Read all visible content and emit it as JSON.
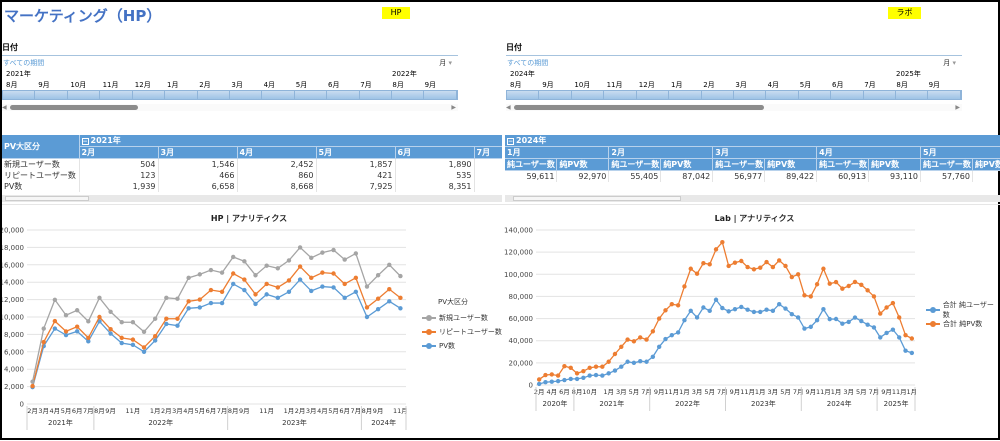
{
  "header": {
    "title": "マーケティング（HP）",
    "badge_hp": "HP",
    "badge_lab": "ラボ"
  },
  "colors": {
    "title": "#4472c4",
    "header_bg": "#5b9bd5",
    "badge": "#ffff00",
    "gray": "#a5a5a5",
    "orange": "#ed7d31",
    "blue": "#5b9bd5"
  },
  "left_slicer": {
    "heading": "日付",
    "all_periods": "すべての期間",
    "level": "月",
    "year_start": "2021年",
    "year_end": "2022年",
    "months": [
      "8月",
      "9月",
      "10月",
      "11月",
      "12月",
      "1月",
      "2月",
      "3月",
      "4月",
      "5月",
      "6月",
      "7月",
      "8月",
      "9月"
    ]
  },
  "right_slicer": {
    "heading": "日付",
    "all_periods": "すべての期間",
    "level": "月",
    "year_start": "2024年",
    "year_end": "2025年",
    "months": [
      "8月",
      "9月",
      "10月",
      "11月",
      "12月",
      "1月",
      "2月",
      "3月",
      "4月",
      "5月",
      "6月",
      "7月",
      "8月",
      "9月"
    ]
  },
  "left_table": {
    "row_header": "PV大区分",
    "year": "2021年",
    "months": [
      "2月",
      "3月",
      "4月",
      "5月",
      "6月",
      "7月"
    ],
    "rows": [
      {
        "label": "新規ユーザー数",
        "values": [
          "504",
          "1,546",
          "2,452",
          "1,857",
          "1,890",
          ""
        ]
      },
      {
        "label": "リピートユーザー数",
        "values": [
          "123",
          "466",
          "860",
          "421",
          "535",
          ""
        ]
      },
      {
        "label": "PV数",
        "values": [
          "1,939",
          "6,658",
          "8,668",
          "7,925",
          "8,351",
          ""
        ]
      }
    ]
  },
  "right_table": {
    "year": "2024年",
    "months": [
      "1月",
      "2月",
      "3月",
      "4月",
      "5月"
    ],
    "sub_headers": [
      "純ユーザー数",
      "純PV数"
    ],
    "values": [
      "59,611",
      "92,970",
      "55,405",
      "87,042",
      "56,977",
      "89,422",
      "60,913",
      "93,110",
      "57,760",
      "90,"
    ]
  },
  "chart_data": [
    {
      "type": "line",
      "stacked": true,
      "title": "HP | アナリティクス",
      "ylim": [
        0,
        20000
      ],
      "y_ticks": [
        "0",
        "2,000",
        "4,000",
        "6,000",
        "8,000",
        "10,000",
        "12,000",
        "14,000",
        "16,000",
        "18,000",
        "20,000"
      ],
      "x_labels": [
        "2月",
        "3月",
        "4月",
        "5月",
        "6月",
        "7月",
        "8月",
        "9月",
        "",
        "11月",
        "",
        "1月",
        "2月",
        "3月",
        "4月",
        "5月",
        "6月",
        "7月",
        "8月",
        "9月",
        "",
        "11月",
        "",
        "1月",
        "2月",
        "3月",
        "4月",
        "5月",
        "6月",
        "7月",
        "8月",
        "9月",
        "",
        "11月"
      ],
      "year_groups": [
        {
          "label": "2021年",
          "count": 6
        },
        {
          "label": "2022年",
          "count": 12
        },
        {
          "label": "2023年",
          "count": 12
        },
        {
          "label": "2024年",
          "count": 4
        }
      ],
      "legend_title": "PV大区分",
      "legend": "right",
      "grid": true,
      "series": [
        {
          "name": "PV数",
          "color": "#5b9bd5",
          "values": [
            1939,
            6658,
            8668,
            7925,
            8351,
            7200,
            9500,
            8100,
            7000,
            6800,
            6000,
            7300,
            9200,
            9000,
            11000,
            11100,
            11600,
            11600,
            13800,
            13100,
            11500,
            12600,
            12200,
            12900,
            14300,
            13000,
            13500,
            13400,
            12200,
            12900,
            10000,
            10900,
            11800,
            11000
          ]
        },
        {
          "name": "リピートユーザー数",
          "color": "#ed7d31",
          "values": [
            123,
            466,
            860,
            421,
            535,
            400,
            500,
            500,
            600,
            600,
            500,
            500,
            600,
            800,
            800,
            900,
            1500,
            1300,
            1200,
            1200,
            1100,
            1200,
            1200,
            1300,
            1500,
            1500,
            1600,
            1600,
            1600,
            1600,
            1100,
            1200,
            1400,
            1200
          ]
        },
        {
          "name": "新規ユーザー数",
          "color": "#a5a5a5",
          "values": [
            504,
            1546,
            2452,
            1857,
            1890,
            1900,
            2200,
            2000,
            1800,
            2000,
            1800,
            2000,
            2400,
            2300,
            2700,
            2900,
            2300,
            2200,
            1900,
            2100,
            2200,
            2100,
            2200,
            2300,
            2200,
            2300,
            2300,
            2700,
            2800,
            2800,
            2400,
            2700,
            2800,
            2500
          ]
        }
      ]
    },
    {
      "type": "line",
      "stacked": false,
      "title": "Lab | アナリティクス",
      "ylim": [
        0,
        140000
      ],
      "y_ticks": [
        "0",
        "20,000",
        "40,000",
        "60,000",
        "80,000",
        "100,000",
        "120,000",
        "140,000"
      ],
      "x_labels": [
        "2月",
        "",
        "4月",
        "",
        "6月",
        "",
        "8月",
        "",
        "10月",
        "",
        "",
        "1月",
        "",
        "3月",
        "",
        "5月",
        "",
        "7月",
        "",
        "9月",
        "",
        "11月",
        "",
        "1月",
        "",
        "3月",
        "",
        "5月",
        "",
        "7月",
        "",
        "9月",
        "",
        "11月",
        "",
        "1月",
        "",
        "3月",
        "",
        "5月",
        "",
        "7月",
        "",
        "9月",
        "",
        "11月",
        "",
        "1月",
        "",
        "3月",
        "",
        "5月",
        "",
        "7月",
        "",
        "9月",
        "",
        "11月",
        "",
        "1月"
      ],
      "year_groups": [
        {
          "label": "2020年",
          "count": 6
        },
        {
          "label": "2021年",
          "count": 12
        },
        {
          "label": "2022年",
          "count": 12
        },
        {
          "label": "2023年",
          "count": 12
        },
        {
          "label": "2024年",
          "count": 12
        },
        {
          "label": "2025年",
          "count": 6
        }
      ],
      "legend": "right",
      "grid": true,
      "series": [
        {
          "name": "合計 純ユーザー数",
          "color": "#5b9bd5",
          "values": [
            1000,
            2500,
            3000,
            3500,
            4500,
            5500,
            5500,
            6500,
            8500,
            9000,
            8500,
            10500,
            13000,
            16500,
            21000,
            20000,
            21500,
            21000,
            25500,
            34500,
            41500,
            45000,
            47500,
            58500,
            67000,
            61000,
            70000,
            67000,
            77000,
            69500,
            66500,
            68500,
            70500,
            68000,
            66000,
            66000,
            68000,
            67000,
            73000,
            69000,
            64000,
            61000,
            51000,
            52500,
            58500,
            68500,
            59500,
            59611,
            55405,
            56977,
            60913,
            57760,
            54500,
            52000,
            43000,
            47000,
            50000,
            43000,
            31000,
            29000
          ]
        },
        {
          "name": "合計 純PV数",
          "color": "#ed7d31",
          "values": [
            5000,
            9000,
            9500,
            8500,
            17000,
            15500,
            10500,
            12500,
            15500,
            16500,
            16500,
            21000,
            28000,
            34500,
            41000,
            39500,
            43000,
            41000,
            48500,
            60000,
            67500,
            73000,
            72000,
            89000,
            105000,
            100500,
            110000,
            109000,
            122500,
            129000,
            107500,
            110500,
            112000,
            106500,
            104500,
            106000,
            111000,
            106500,
            112500,
            107500,
            97500,
            100000,
            81000,
            80000,
            91000,
            105000,
            91500,
            92970,
            87042,
            89422,
            93110,
            90500,
            85500,
            80000,
            64500,
            70000,
            74000,
            61000,
            45000,
            42000
          ]
        }
      ]
    }
  ]
}
